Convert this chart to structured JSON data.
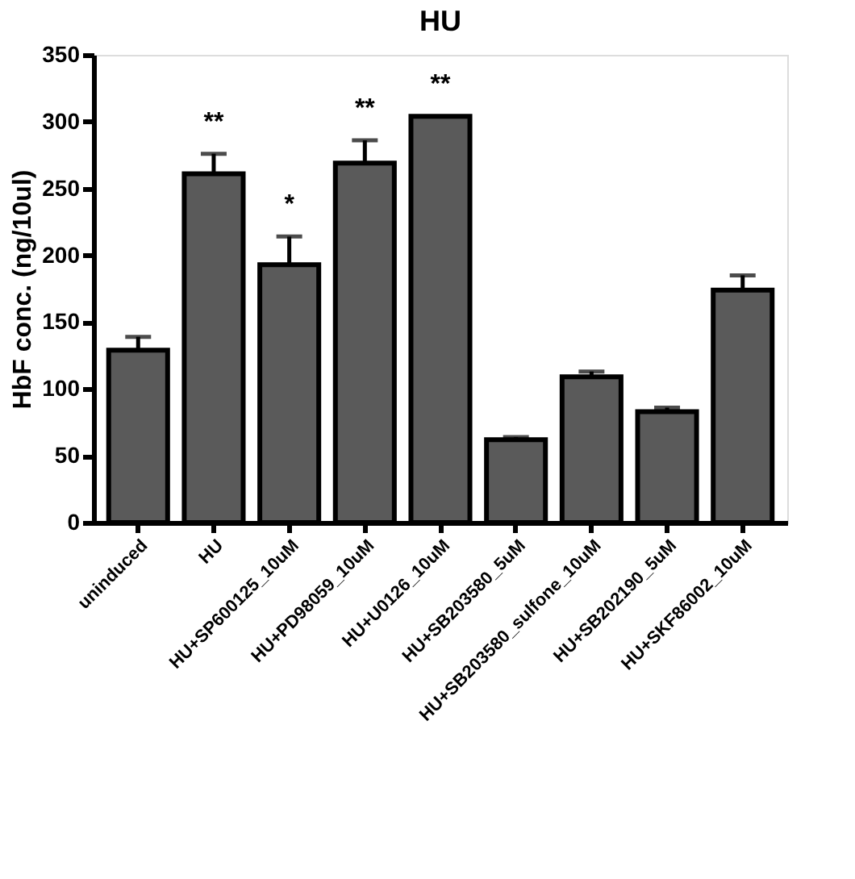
{
  "chart_data": {
    "type": "bar",
    "title": "HU",
    "ylabel": "HbF conc. (ng/10ul)",
    "categories": [
      "uninduced",
      "HU",
      "HU+SP600125_10uM",
      "HU+PD98059_10uM",
      "HU+U0126_10uM",
      "HU+SB203580_5uM",
      "HU+SB203580_sulfone_10uM",
      "HU+SB202190_5uM",
      "HU+SKF86002_10uM"
    ],
    "values": [
      129,
      261,
      193,
      269,
      304,
      62,
      109,
      83,
      174
    ],
    "errors": [
      10,
      15,
      21,
      17,
      null,
      2,
      4,
      3,
      11
    ],
    "color": "#5a5a5a",
    "ylim": [
      0,
      350
    ],
    "yticks": [
      0,
      50,
      100,
      150,
      200,
      250,
      300,
      350
    ],
    "grid": false,
    "annotations": [
      {
        "text": "**",
        "x": "HU",
        "y": 261
      },
      {
        "text": "*",
        "x": "HU+SP600125_10uM",
        "y": 193
      },
      {
        "text": "**",
        "x": "HU+PD98059_10uM",
        "y": 269
      },
      {
        "text": "**",
        "x": "HU+U0126_10uM",
        "y": 304
      }
    ]
  }
}
